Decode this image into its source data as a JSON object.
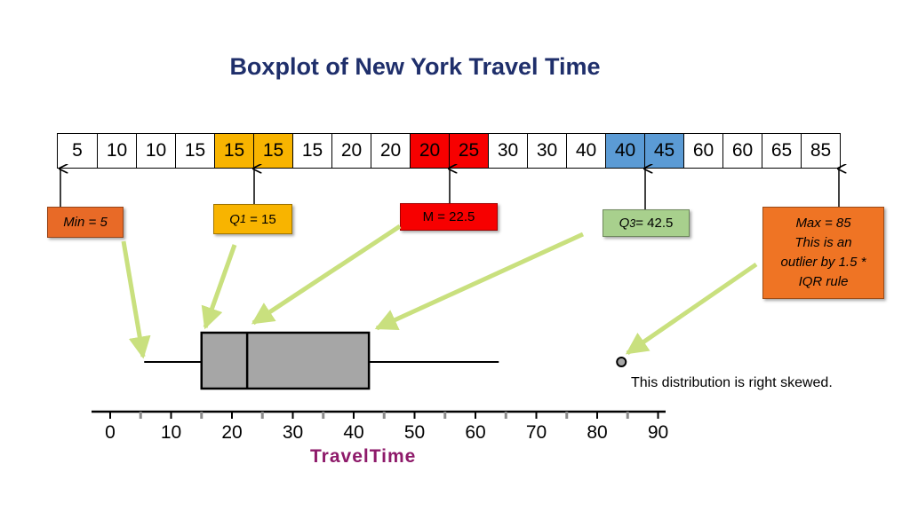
{
  "title": "Boxplot of New York Travel Time",
  "sorted_values": [
    {
      "text": "5",
      "color": "#ffffff"
    },
    {
      "text": "10",
      "color": "#ffffff"
    },
    {
      "text": "10",
      "color": "#ffffff"
    },
    {
      "text": "15",
      "color": "#ffffff"
    },
    {
      "text": "15",
      "color": "#f8b400"
    },
    {
      "text": "15",
      "color": "#f8b400"
    },
    {
      "text": "15",
      "color": "#ffffff"
    },
    {
      "text": "20",
      "color": "#ffffff"
    },
    {
      "text": "20",
      "color": "#ffffff"
    },
    {
      "text": "20",
      "color": "#f70000"
    },
    {
      "text": "25",
      "color": "#f70000"
    },
    {
      "text": "30",
      "color": "#ffffff"
    },
    {
      "text": "30",
      "color": "#ffffff"
    },
    {
      "text": "40",
      "color": "#ffffff"
    },
    {
      "text": "40",
      "color": "#5b9bd5"
    },
    {
      "text": "45",
      "color": "#5b9bd5"
    },
    {
      "text": "60",
      "color": "#ffffff"
    },
    {
      "text": "60",
      "color": "#ffffff"
    },
    {
      "text": "65",
      "color": "#ffffff"
    },
    {
      "text": "85",
      "color": "#ffffff"
    }
  ],
  "callouts": {
    "min": "Min = 5",
    "q1_symbol": "Q",
    "q1_sub": "1",
    "q1_rest": " = 15",
    "median": "M = 22.5",
    "q3_symbol": "Q",
    "q3_sub": "3",
    "q3_rest": "= 42.5",
    "max_lines": [
      "Max = 85",
      "This is an",
      "outlier by 1.5 *",
      "IQR rule"
    ]
  },
  "note": "This distribution is right skewed.",
  "boxplot": {
    "whisker_low": 5,
    "q1": 15,
    "median": 22.5,
    "q3": 42.5,
    "whisker_high": 65,
    "outlier": 85
  },
  "axis": {
    "label": "TravelTime",
    "min": 0,
    "max": 90,
    "ticks": [
      "0",
      "10",
      "20",
      "30",
      "40",
      "50",
      "60",
      "70",
      "80",
      "90"
    ]
  },
  "colors": {
    "title": "#1f2f6b",
    "axis_label": "#8e1a6a",
    "arrow": "#c9e07e",
    "box_fill": "#a6a6a6"
  }
}
